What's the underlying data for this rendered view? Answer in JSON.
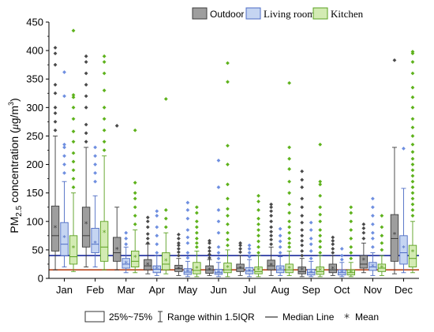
{
  "chart_data": {
    "type": "box",
    "ylabel": "PM2.5 concentration (μg/m³)",
    "ylabel_parts": {
      "pre": "PM",
      "sub": "2.5",
      "post": " concentration (",
      "mu": "μ",
      "unit": "g/m",
      "sup": "3",
      "close": ")"
    },
    "ylim": [
      0,
      450
    ],
    "yticks": [
      0,
      50,
      100,
      150,
      200,
      250,
      300,
      350,
      400,
      450
    ],
    "categories": [
      "Jan",
      "Feb",
      "Mar",
      "Apr",
      "May",
      "Jun",
      "Jul",
      "Aug",
      "Sep",
      "Oct",
      "Nov",
      "Dec"
    ],
    "reference_lines": [
      {
        "value": 40,
        "color": "#1a2a9c"
      },
      {
        "value": 15,
        "color": "#b8451c"
      }
    ],
    "series": [
      {
        "name": "Outdoor",
        "fill": "#9e9e9e",
        "stroke": "#3c3c3c",
        "point_color": "#4a4a4a",
        "boxes": [
          {
            "min": 15,
            "q1": 48,
            "median": 75,
            "q3": 127,
            "max": 250,
            "mean": 90,
            "outliers": [
              260,
              275,
              290,
              300,
              325,
              340,
              375,
              395,
              405
            ]
          },
          {
            "min": 20,
            "q1": 55,
            "median": 75,
            "q3": 125,
            "max": 230,
            "mean": 97,
            "outliers": [
              240,
              255,
              270,
              300,
              320,
              340,
              360,
              380,
              390
            ]
          },
          {
            "min": 15,
            "q1": 30,
            "median": 45,
            "q3": 72,
            "max": 125,
            "mean": 52,
            "outliers": [
              268
            ]
          },
          {
            "min": 8,
            "q1": 15,
            "median": 22,
            "q3": 33,
            "max": 60,
            "mean": 25,
            "outliers": [
              62,
              70,
              78,
              90,
              100,
              107
            ]
          },
          {
            "min": 5,
            "q1": 12,
            "median": 17,
            "q3": 23,
            "max": 35,
            "mean": 18,
            "outliers": [
              40,
              46,
              52,
              58,
              62,
              70,
              77
            ]
          },
          {
            "min": 5,
            "q1": 9,
            "median": 15,
            "q3": 22,
            "max": 33,
            "mean": 16,
            "outliers": [
              36,
              42,
              48,
              54,
              62,
              66
            ]
          },
          {
            "min": 5,
            "q1": 12,
            "median": 18,
            "q3": 25,
            "max": 40,
            "mean": 19,
            "outliers": [
              46,
              52,
              58,
              62
            ]
          },
          {
            "min": 5,
            "q1": 15,
            "median": 22,
            "q3": 32,
            "max": 55,
            "mean": 24,
            "outliers": [
              60,
              68,
              75,
              82,
              90,
              100,
              110,
              118,
              125,
              130
            ]
          },
          {
            "min": 3,
            "q1": 8,
            "median": 12,
            "q3": 20,
            "max": 35,
            "mean": 16,
            "outliers": [
              40,
              48,
              58,
              66,
              75,
              85,
              98,
              110,
              125,
              140,
              160,
              173,
              188
            ]
          },
          {
            "min": 5,
            "q1": 10,
            "median": 15,
            "q3": 25,
            "max": 40,
            "mean": 18,
            "outliers": [
              45,
              52,
              60,
              66,
              72
            ]
          },
          {
            "min": 10,
            "q1": 18,
            "median": 25,
            "q3": 40,
            "max": 62,
            "mean": 33,
            "outliers": [
              70,
              80,
              88,
              95
            ]
          },
          {
            "min": 8,
            "q1": 30,
            "median": 70,
            "q3": 112,
            "max": 230,
            "mean": 78,
            "outliers": [
              383
            ]
          }
        ]
      },
      {
        "name": "Living room",
        "fill": "#c5d5f2",
        "stroke": "#4d6cc4",
        "point_color": "#6f8fe0",
        "boxes": [
          {
            "min": 20,
            "q1": 40,
            "median": 60,
            "q3": 98,
            "max": 170,
            "mean": 73,
            "outliers": [
              185,
              200,
              215,
              230,
              235,
              320,
              362
            ]
          },
          {
            "min": 20,
            "q1": 45,
            "median": 60,
            "q3": 88,
            "max": 145,
            "mean": 63,
            "outliers": [
              170,
              185,
              200,
              215,
              230
            ]
          },
          {
            "min": 10,
            "q1": 18,
            "median": 25,
            "q3": 35,
            "max": 55,
            "mean": 28,
            "outliers": [
              60,
              70,
              80
            ]
          },
          {
            "min": 5,
            "q1": 10,
            "median": 16,
            "q3": 22,
            "max": 40,
            "mean": 18,
            "outliers": [
              45,
              60,
              75,
              90,
              110,
              118
            ]
          },
          {
            "min": 3,
            "q1": 7,
            "median": 11,
            "q3": 17,
            "max": 30,
            "mean": 13,
            "outliers": [
              36,
              45,
              62,
              72,
              85,
              105,
              120,
              133
            ]
          },
          {
            "min": 3,
            "q1": 7,
            "median": 10,
            "q3": 16,
            "max": 28,
            "mean": 12,
            "outliers": [
              35,
              45,
              55,
              80,
              100,
              120,
              160,
              207
            ]
          },
          {
            "min": 3,
            "q1": 8,
            "median": 13,
            "q3": 19,
            "max": 33,
            "mean": 14,
            "outliers": [
              38,
              45,
              52,
              58
            ]
          },
          {
            "min": 5,
            "q1": 10,
            "median": 15,
            "q3": 22,
            "max": 38,
            "mean": 17,
            "outliers": [
              45,
              55,
              65,
              75,
              87
            ]
          },
          {
            "min": 3,
            "q1": 6,
            "median": 10,
            "q3": 16,
            "max": 30,
            "mean": 12,
            "outliers": [
              35,
              48,
              60,
              70,
              85,
              98
            ]
          },
          {
            "min": 3,
            "q1": 6,
            "median": 10,
            "q3": 15,
            "max": 28,
            "mean": 12,
            "outliers": [
              33,
              40,
              52
            ]
          },
          {
            "min": 5,
            "q1": 14,
            "median": 20,
            "q3": 28,
            "max": 45,
            "mean": 22,
            "outliers": [
              55,
              70,
              80,
              95,
              110,
              125,
              140
            ]
          },
          {
            "min": 10,
            "q1": 25,
            "median": 45,
            "q3": 75,
            "max": 158,
            "mean": 55,
            "outliers": [
              228
            ]
          }
        ]
      },
      {
        "name": "Kitchen",
        "fill": "#d3ebb3",
        "stroke": "#5aa020",
        "point_color": "#5eb21c",
        "boxes": [
          {
            "min": 12,
            "q1": 25,
            "median": 38,
            "q3": 75,
            "max": 150,
            "mean": 55,
            "outliers": [
              160,
              175,
              190,
              205,
              220,
              240,
              258,
              280,
              300,
              318,
              322,
              435
            ]
          },
          {
            "min": 15,
            "q1": 30,
            "median": 55,
            "q3": 100,
            "max": 215,
            "mean": 82,
            "outliers": [
              225,
              240,
              260,
              280,
              300,
              330,
              360,
              380,
              390
            ]
          },
          {
            "min": 10,
            "q1": 20,
            "median": 30,
            "q3": 48,
            "max": 85,
            "mean": 38,
            "outliers": [
              95,
              110,
              125,
              140,
              150,
              168,
              260
            ]
          },
          {
            "min": 8,
            "q1": 15,
            "median": 25,
            "q3": 45,
            "max": 80,
            "mean": 32,
            "outliers": [
              90,
              105,
              120,
              315
            ]
          },
          {
            "min": 3,
            "q1": 8,
            "median": 14,
            "q3": 28,
            "max": 48,
            "mean": 19,
            "outliers": [
              55,
              62,
              70,
              80,
              90,
              100,
              115,
              125
            ]
          },
          {
            "min": 3,
            "q1": 10,
            "median": 15,
            "q3": 27,
            "max": 50,
            "mean": 20,
            "outliers": [
              58,
              68,
              80,
              95,
              110,
              122,
              140,
              165,
              200,
              233,
              345,
              378
            ]
          },
          {
            "min": 3,
            "q1": 8,
            "median": 12,
            "q3": 20,
            "max": 40,
            "mean": 16,
            "outliers": [
              45,
              55,
              65,
              75,
              85,
              95,
              105,
              120,
              135,
              145
            ]
          },
          {
            "min": 5,
            "q1": 10,
            "median": 15,
            "q3": 25,
            "max": 48,
            "mean": 19,
            "outliers": [
              55,
              62,
              70,
              80,
              90,
              100,
              115,
              130,
              150,
              170,
              192,
              210,
              230,
              343
            ]
          },
          {
            "min": 3,
            "q1": 7,
            "median": 12,
            "q3": 20,
            "max": 40,
            "mean": 15,
            "outliers": [
              45,
              55,
              65,
              75,
              85,
              100,
              112,
              125,
              145,
              165,
              170,
              235
            ]
          },
          {
            "min": 3,
            "q1": 6,
            "median": 10,
            "q3": 15,
            "max": 28,
            "mean": 12,
            "outliers": [
              35,
              45,
              55,
              70,
              85,
              100,
              115,
              125
            ]
          },
          {
            "min": 5,
            "q1": 12,
            "median": 18,
            "q3": 25,
            "max": 40,
            "mean": 20,
            "outliers": [
              50,
              62,
              75,
              90,
              110
            ]
          },
          {
            "min": 10,
            "q1": 20,
            "median": 35,
            "q3": 58,
            "max": 100,
            "mean": 48,
            "outliers": [
              110,
              120,
              130,
              140,
              150,
              160,
              170,
              180,
              190,
              200,
              210,
              222,
              235,
              250,
              265,
              280,
              300,
              318,
              335,
              360,
              380,
              395,
              398
            ]
          }
        ]
      }
    ],
    "legend_top": {
      "placement": "top-right",
      "labels": [
        "Outdoor",
        "Living room",
        "Kitchen"
      ]
    },
    "legend_bottom": {
      "placement": "bottom-center",
      "iqr_label": "25%~75%",
      "range_label": "Range within 1.5IQR",
      "median_label": "Median Line",
      "mean_label": "Mean"
    }
  }
}
